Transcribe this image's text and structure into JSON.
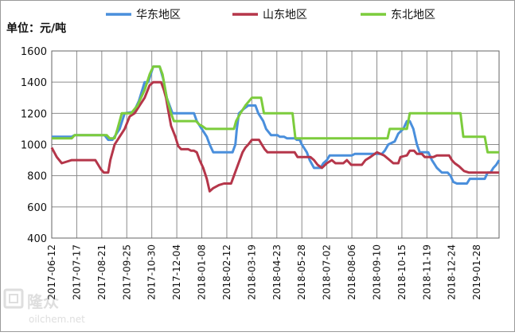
{
  "chart_data": {
    "type": "line",
    "unit_label": "单位：元/吨",
    "ylim": [
      400,
      1600
    ],
    "yticks": [
      400,
      600,
      800,
      1000,
      1200,
      1400,
      1600
    ],
    "xlim": [
      "2017-06-12",
      "2019-02-28"
    ],
    "xticks": [
      "2017-06-12",
      "2017-07-17",
      "2017-08-21",
      "2017-09-25",
      "2017-10-30",
      "2017-12-04",
      "2018-01-08",
      "2018-02-12",
      "2018-03-19",
      "2018-04-23",
      "2018-05-28",
      "2018-07-02",
      "2018-08-06",
      "2018-09-10",
      "2018-10-15",
      "2018-11-19",
      "2018-12-24",
      "2019-01-28"
    ],
    "grid": true,
    "legend_position": "top",
    "series": [
      {
        "name": "华东地区",
        "color": "#4a8fdc",
        "points": [
          [
            "2017-06-12",
            1050
          ],
          [
            "2017-07-10",
            1050
          ],
          [
            "2017-07-14",
            1060
          ],
          [
            "2017-08-25",
            1060
          ],
          [
            "2017-08-30",
            1030
          ],
          [
            "2017-09-05",
            1030
          ],
          [
            "2017-09-15",
            1100
          ],
          [
            "2017-09-22",
            1200
          ],
          [
            "2017-10-05",
            1210
          ],
          [
            "2017-10-12",
            1280
          ],
          [
            "2017-10-20",
            1400
          ],
          [
            "2017-10-25",
            1400
          ],
          [
            "2017-11-01",
            1500
          ],
          [
            "2017-11-10",
            1500
          ],
          [
            "2017-11-15",
            1420
          ],
          [
            "2017-11-20",
            1300
          ],
          [
            "2017-11-28",
            1200
          ],
          [
            "2017-12-28",
            1200
          ],
          [
            "2018-01-01",
            1150
          ],
          [
            "2018-01-08",
            1100
          ],
          [
            "2018-01-15",
            1050
          ],
          [
            "2018-01-19",
            1000
          ],
          [
            "2018-01-24",
            950
          ],
          [
            "2018-02-20",
            950
          ],
          [
            "2018-02-24",
            1000
          ],
          [
            "2018-02-26",
            1100
          ],
          [
            "2018-03-01",
            1200
          ],
          [
            "2018-03-08",
            1230
          ],
          [
            "2018-03-14",
            1250
          ],
          [
            "2018-03-24",
            1250
          ],
          [
            "2018-03-28",
            1200
          ],
          [
            "2018-04-04",
            1150
          ],
          [
            "2018-04-08",
            1100
          ],
          [
            "2018-04-15",
            1060
          ],
          [
            "2018-04-24",
            1060
          ],
          [
            "2018-04-27",
            1050
          ],
          [
            "2018-05-03",
            1050
          ],
          [
            "2018-05-07",
            1040
          ],
          [
            "2018-05-18",
            1040
          ],
          [
            "2018-05-21",
            1030
          ],
          [
            "2018-05-25",
            1030
          ],
          [
            "2018-05-28",
            1000
          ],
          [
            "2018-06-04",
            950
          ],
          [
            "2018-06-08",
            900
          ],
          [
            "2018-06-14",
            850
          ],
          [
            "2018-06-23",
            850
          ],
          [
            "2018-06-27",
            880
          ],
          [
            "2018-07-02",
            900
          ],
          [
            "2018-07-06",
            930
          ],
          [
            "2018-08-06",
            930
          ],
          [
            "2018-08-10",
            940
          ],
          [
            "2018-09-17",
            940
          ],
          [
            "2018-09-21",
            960
          ],
          [
            "2018-09-26",
            1000
          ],
          [
            "2018-10-05",
            1020
          ],
          [
            "2018-10-10",
            1070
          ],
          [
            "2018-10-17",
            1100
          ],
          [
            "2018-10-22",
            1150
          ],
          [
            "2018-10-26",
            1150
          ],
          [
            "2018-10-31",
            1100
          ],
          [
            "2018-11-05",
            1000
          ],
          [
            "2018-11-09",
            950
          ],
          [
            "2018-11-21",
            950
          ],
          [
            "2018-11-26",
            900
          ],
          [
            "2018-12-03",
            850
          ],
          [
            "2018-12-10",
            820
          ],
          [
            "2018-12-18",
            820
          ],
          [
            "2018-12-22",
            800
          ],
          [
            "2018-12-26",
            760
          ],
          [
            "2018-12-31",
            750
          ],
          [
            "2019-01-14",
            750
          ],
          [
            "2019-01-18",
            780
          ],
          [
            "2019-02-08",
            780
          ],
          [
            "2019-02-12",
            820
          ],
          [
            "2019-02-16",
            820
          ],
          [
            "2019-02-20",
            850
          ],
          [
            "2019-02-24",
            870
          ],
          [
            "2019-02-28",
            900
          ]
        ]
      },
      {
        "name": "山东地区",
        "color": "#b5364a",
        "points": [
          [
            "2017-06-12",
            980
          ],
          [
            "2017-06-19",
            920
          ],
          [
            "2017-06-26",
            880
          ],
          [
            "2017-07-03",
            890
          ],
          [
            "2017-07-10",
            900
          ],
          [
            "2017-08-12",
            900
          ],
          [
            "2017-08-16",
            870
          ],
          [
            "2017-08-20",
            840
          ],
          [
            "2017-08-24",
            820
          ],
          [
            "2017-08-30",
            820
          ],
          [
            "2017-09-02",
            900
          ],
          [
            "2017-09-08",
            1000
          ],
          [
            "2017-09-15",
            1050
          ],
          [
            "2017-09-22",
            1100
          ],
          [
            "2017-09-29",
            1180
          ],
          [
            "2017-10-06",
            1200
          ],
          [
            "2017-10-13",
            1250
          ],
          [
            "2017-10-20",
            1300
          ],
          [
            "2017-10-27",
            1380
          ],
          [
            "2017-11-01",
            1400
          ],
          [
            "2017-11-12",
            1400
          ],
          [
            "2017-11-16",
            1350
          ],
          [
            "2017-11-19",
            1300
          ],
          [
            "2017-11-22",
            1220
          ],
          [
            "2017-11-26",
            1120
          ],
          [
            "2017-12-02",
            1050
          ],
          [
            "2017-12-06",
            990
          ],
          [
            "2017-12-10",
            970
          ],
          [
            "2017-12-20",
            970
          ],
          [
            "2017-12-24",
            960
          ],
          [
            "2017-12-28",
            960
          ],
          [
            "2018-01-01",
            950
          ],
          [
            "2018-01-05",
            900
          ],
          [
            "2018-01-10",
            850
          ],
          [
            "2018-01-15",
            780
          ],
          [
            "2018-01-19",
            700
          ],
          [
            "2018-01-24",
            720
          ],
          [
            "2018-02-01",
            740
          ],
          [
            "2018-02-08",
            750
          ],
          [
            "2018-02-18",
            750
          ],
          [
            "2018-02-22",
            800
          ],
          [
            "2018-02-26",
            850
          ],
          [
            "2018-03-02",
            900
          ],
          [
            "2018-03-06",
            950
          ],
          [
            "2018-03-10",
            980
          ],
          [
            "2018-03-14",
            1000
          ],
          [
            "2018-03-19",
            1030
          ],
          [
            "2018-03-29",
            1030
          ],
          [
            "2018-04-02",
            1000
          ],
          [
            "2018-04-06",
            970
          ],
          [
            "2018-04-10",
            950
          ],
          [
            "2018-05-18",
            950
          ],
          [
            "2018-05-22",
            920
          ],
          [
            "2018-06-09",
            920
          ],
          [
            "2018-06-14",
            900
          ],
          [
            "2018-06-19",
            870
          ],
          [
            "2018-06-25",
            850
          ],
          [
            "2018-07-02",
            880
          ],
          [
            "2018-07-09",
            900
          ],
          [
            "2018-07-14",
            880
          ],
          [
            "2018-07-25",
            880
          ],
          [
            "2018-07-30",
            900
          ],
          [
            "2018-08-05",
            870
          ],
          [
            "2018-08-20",
            870
          ],
          [
            "2018-08-25",
            900
          ],
          [
            "2018-09-01",
            920
          ],
          [
            "2018-09-10",
            950
          ],
          [
            "2018-09-20",
            930
          ],
          [
            "2018-09-28",
            900
          ],
          [
            "2018-10-03",
            880
          ],
          [
            "2018-10-10",
            880
          ],
          [
            "2018-10-13",
            920
          ],
          [
            "2018-10-22",
            930
          ],
          [
            "2018-10-26",
            960
          ],
          [
            "2018-11-01",
            960
          ],
          [
            "2018-11-05",
            940
          ],
          [
            "2018-11-12",
            940
          ],
          [
            "2018-11-16",
            920
          ],
          [
            "2018-11-28",
            920
          ],
          [
            "2018-12-03",
            930
          ],
          [
            "2018-12-20",
            930
          ],
          [
            "2018-12-24",
            900
          ],
          [
            "2018-12-28",
            880
          ],
          [
            "2019-01-03",
            860
          ],
          [
            "2019-01-10",
            830
          ],
          [
            "2019-01-17",
            820
          ],
          [
            "2019-02-28",
            820
          ]
        ]
      },
      {
        "name": "东北地区",
        "color": "#7ccc3c",
        "points": [
          [
            "2017-06-12",
            1040
          ],
          [
            "2017-07-10",
            1040
          ],
          [
            "2017-07-14",
            1060
          ],
          [
            "2017-08-28",
            1060
          ],
          [
            "2017-09-01",
            1040
          ],
          [
            "2017-09-08",
            1040
          ],
          [
            "2017-09-12",
            1100
          ],
          [
            "2017-09-18",
            1200
          ],
          [
            "2017-10-01",
            1200
          ],
          [
            "2017-10-10",
            1250
          ],
          [
            "2017-10-20",
            1350
          ],
          [
            "2017-10-27",
            1450
          ],
          [
            "2017-11-01",
            1500
          ],
          [
            "2017-11-10",
            1500
          ],
          [
            "2017-11-14",
            1450
          ],
          [
            "2017-11-20",
            1300
          ],
          [
            "2017-11-26",
            1200
          ],
          [
            "2017-11-30",
            1150
          ],
          [
            "2017-12-31",
            1150
          ],
          [
            "2018-01-04",
            1130
          ],
          [
            "2018-01-08",
            1120
          ],
          [
            "2018-01-14",
            1100
          ],
          [
            "2018-02-22",
            1100
          ],
          [
            "2018-02-25",
            1150
          ],
          [
            "2018-03-03",
            1200
          ],
          [
            "2018-03-10",
            1250
          ],
          [
            "2018-03-19",
            1300
          ],
          [
            "2018-04-01",
            1300
          ],
          [
            "2018-04-05",
            1200
          ],
          [
            "2018-05-15",
            1200
          ],
          [
            "2018-05-19",
            1040
          ],
          [
            "2018-09-25",
            1040
          ],
          [
            "2018-09-28",
            1100
          ],
          [
            "2018-10-22",
            1100
          ],
          [
            "2018-10-26",
            1200
          ],
          [
            "2019-01-05",
            1200
          ],
          [
            "2019-01-09",
            1050
          ],
          [
            "2019-02-08",
            1050
          ],
          [
            "2019-02-12",
            950
          ],
          [
            "2019-02-28",
            950
          ]
        ]
      }
    ]
  },
  "watermark": {
    "brand_glyphs": "隆众",
    "site": "oilchem.net"
  }
}
